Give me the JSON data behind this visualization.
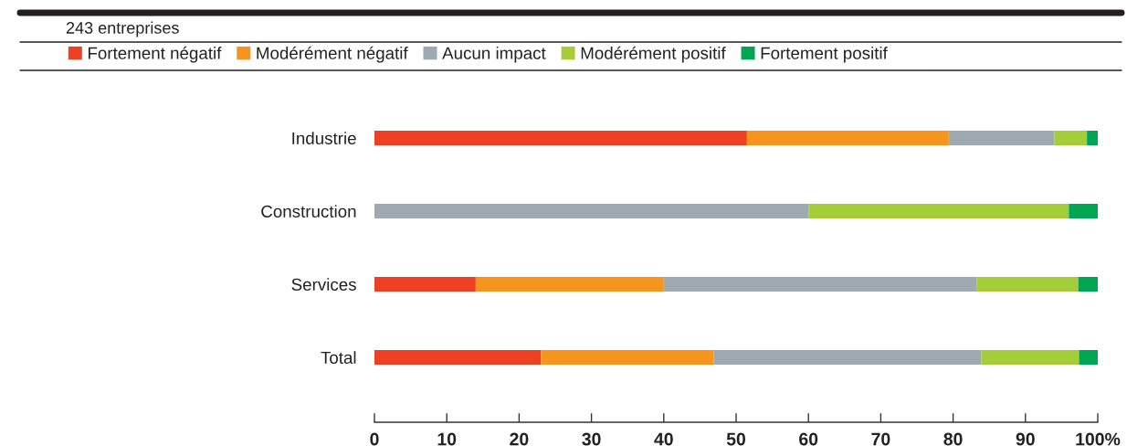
{
  "chart_data": {
    "type": "bar",
    "orientation": "horizontal",
    "stacked": true,
    "subtitle": "243 entreprises",
    "categories": [
      "Industrie",
      "Construction",
      "Services",
      "Total"
    ],
    "series": [
      {
        "name": "Fortement négatif",
        "color": "#ee4023",
        "values": [
          51.5,
          0,
          14.0,
          23.0
        ]
      },
      {
        "name": "Modérément négatif",
        "color": "#f7941e",
        "values": [
          27.9,
          0,
          26.0,
          23.9
        ]
      },
      {
        "name": "Aucun impact",
        "color": "#9ea9b1",
        "values": [
          14.6,
          60.0,
          43.3,
          37.0
        ]
      },
      {
        "name": "Modérément positif",
        "color": "#a5cd39",
        "values": [
          4.5,
          36.0,
          14.0,
          13.5
        ]
      },
      {
        "name": "Fortement positif",
        "color": "#00a651",
        "values": [
          1.5,
          4.0,
          2.7,
          2.6
        ]
      }
    ],
    "xlim": [
      0,
      100
    ],
    "xticks": [
      0,
      10,
      20,
      30,
      40,
      50,
      60,
      70,
      80,
      90,
      {
        "value": 100,
        "label": "100%"
      }
    ],
    "legend": "top"
  }
}
